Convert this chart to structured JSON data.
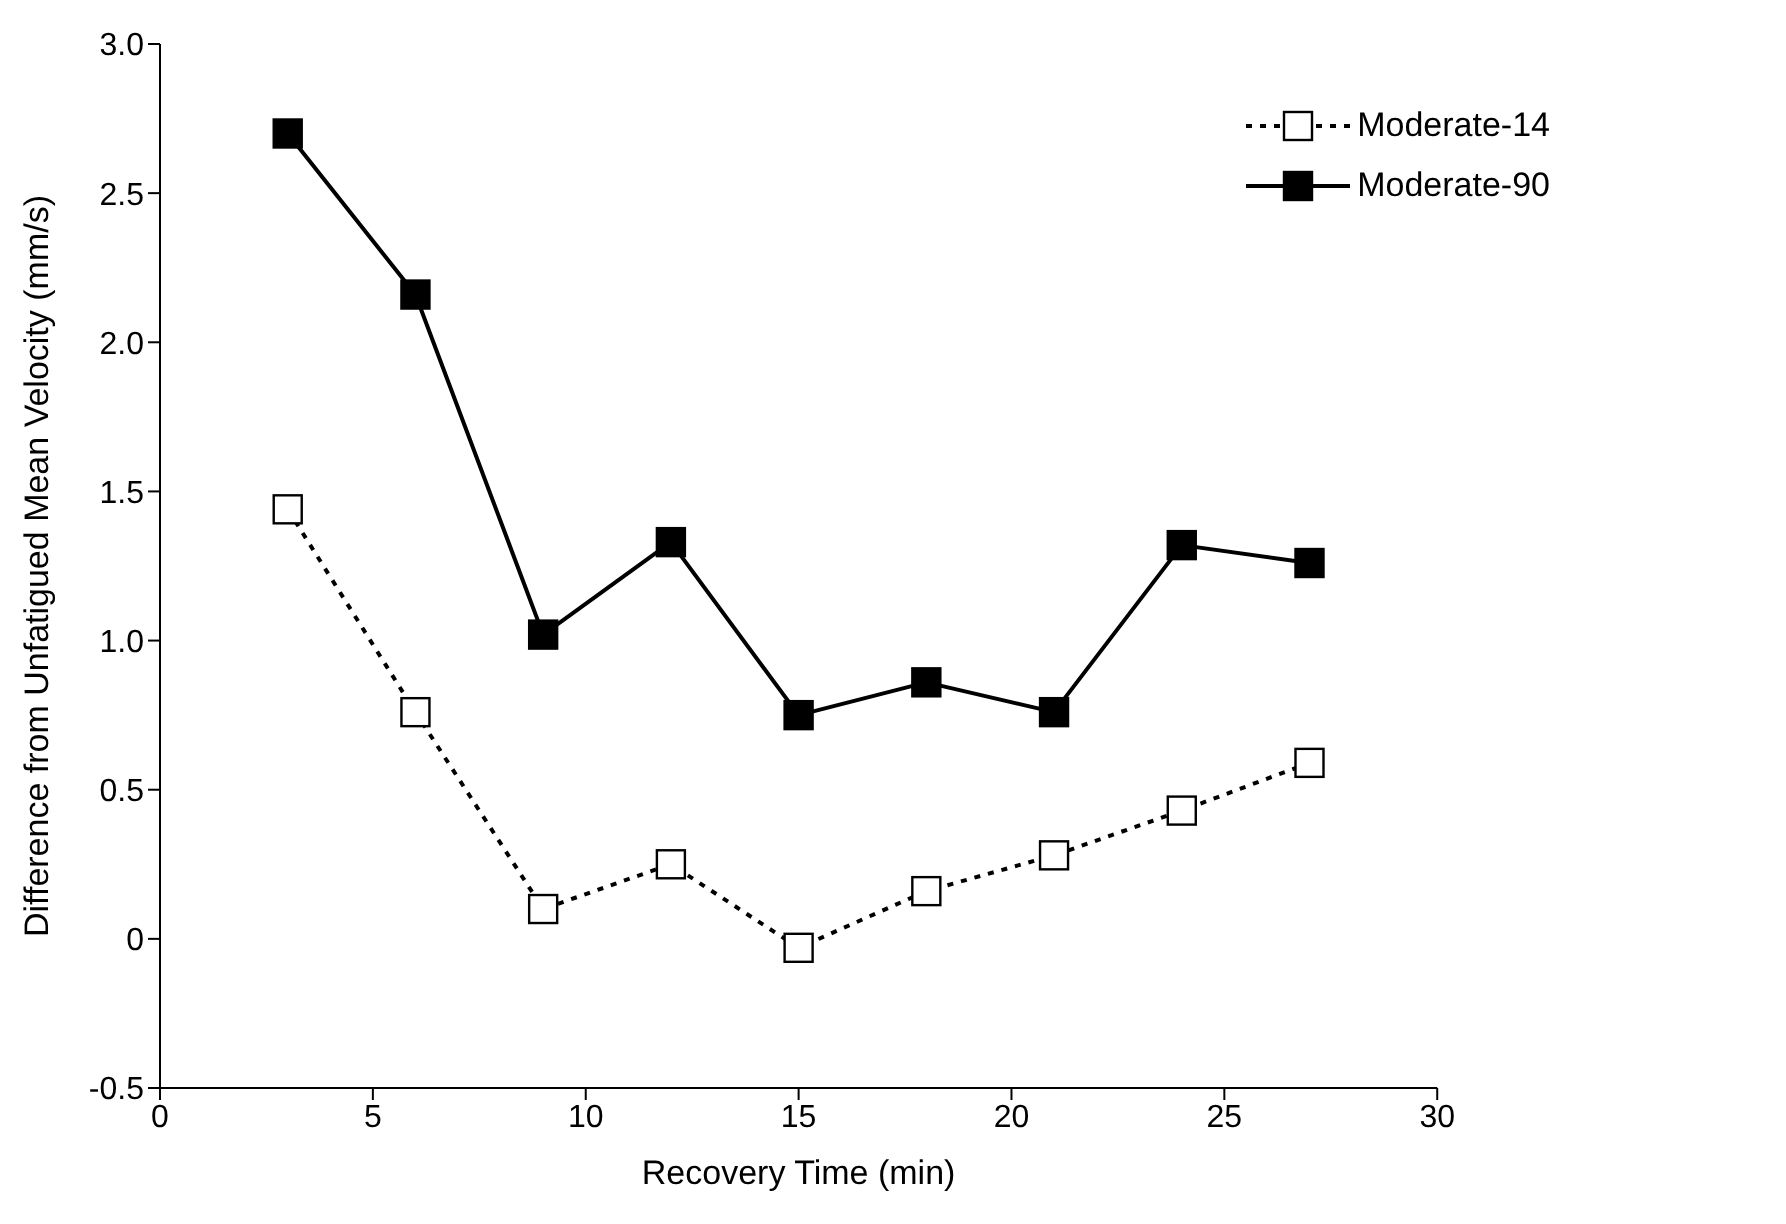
{
  "chart_data": {
    "type": "line",
    "xlabel": "Recovery Time (min)",
    "ylabel": "Difference from Unfatigued Mean Velocity (mm/s)",
    "x": [
      3,
      6,
      9,
      12,
      15,
      18,
      21,
      24,
      27
    ],
    "series": [
      {
        "name": "Moderate-14",
        "color": "#000000",
        "line_style": "dotted",
        "values": [
          1.44,
          0.76,
          0.1,
          0.25,
          -0.03,
          0.16,
          0.28,
          0.43,
          0.59
        ]
      },
      {
        "name": "Moderate-90",
        "color": "#000000",
        "line_style": "solid",
        "values": [
          2.7,
          2.16,
          1.02,
          1.33,
          0.75,
          0.86,
          0.76,
          1.32,
          1.26
        ]
      }
    ],
    "xlim": [
      0,
      30
    ],
    "xticks": [
      0,
      5,
      10,
      15,
      20,
      25,
      30
    ],
    "ylim": [
      -0.5,
      3.0
    ],
    "yticks": [
      -0.5,
      0,
      0.5,
      {
        "value": 1,
        "label": "1.0"
      },
      1.5,
      {
        "value": 2,
        "label": "2.0"
      },
      2.5,
      {
        "value": 3,
        "label": "3.0"
      }
    ],
    "marker": "square",
    "grid": false,
    "legend": "top right"
  }
}
